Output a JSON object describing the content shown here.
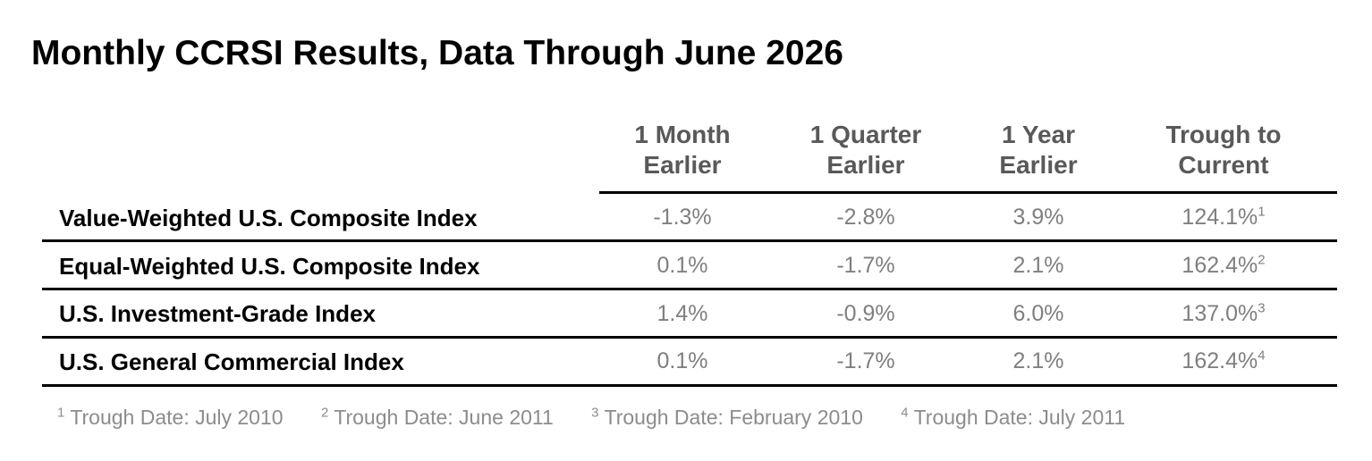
{
  "title": "Monthly CCRSI Results, Data Through June 2026",
  "columns": [
    {
      "line1": "1 Month",
      "line2": "Earlier"
    },
    {
      "line1": "1 Quarter",
      "line2": "Earlier"
    },
    {
      "line1": "1 Year",
      "line2": "Earlier"
    },
    {
      "line1": "Trough to",
      "line2": "Current"
    }
  ],
  "rows": [
    {
      "label": "Value-Weighted U.S. Composite Index",
      "values": [
        "-1.3%",
        "-2.8%",
        "3.9%",
        "124.1%"
      ],
      "note": "1"
    },
    {
      "label": "Equal-Weighted U.S. Composite Index",
      "values": [
        "0.1%",
        "-1.7%",
        "2.1%",
        "162.4%"
      ],
      "note": "2"
    },
    {
      "label": "U.S. Investment-Grade Index",
      "values": [
        "1.4%",
        "-0.9%",
        "6.0%",
        "137.0%"
      ],
      "note": "3"
    },
    {
      "label": "U.S. General Commercial Index",
      "values": [
        "0.1%",
        "-1.7%",
        "2.1%",
        "162.4%"
      ],
      "note": "4"
    }
  ],
  "footnotes": [
    {
      "mark": "1",
      "text": "Trough Date: July 2010"
    },
    {
      "mark": "2",
      "text": "Trough Date: June 2011"
    },
    {
      "mark": "3",
      "text": "Trough Date: February 2010"
    },
    {
      "mark": "4",
      "text": "Trough Date: July 2011"
    }
  ],
  "colors": {
    "header_text": "#595959",
    "value_text": "#7f7f7f",
    "rule": "#000000"
  }
}
